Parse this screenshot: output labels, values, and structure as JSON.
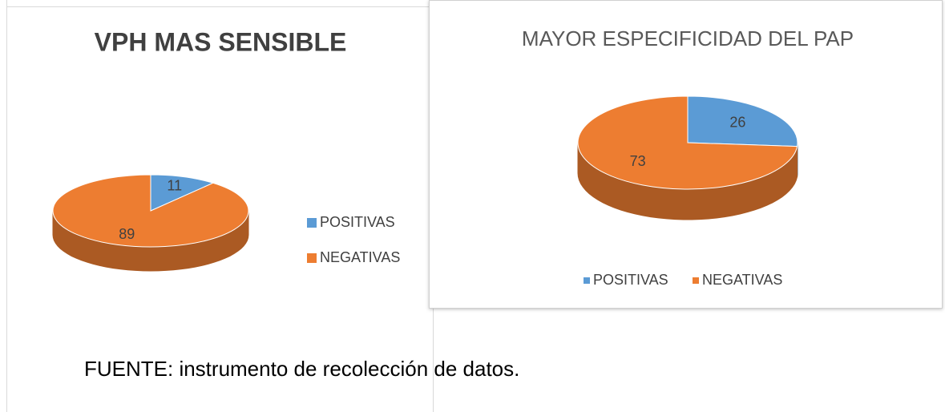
{
  "chart_data": [
    {
      "type": "pie",
      "title": "VPH MAS SENSIBLE",
      "categories": [
        "POSITIVAS",
        "NEGATIVAS"
      ],
      "values": [
        11,
        89
      ],
      "colors": [
        "#5b9bd5",
        "#ed7d31"
      ],
      "legend": "right"
    },
    {
      "type": "pie",
      "title": "MAYOR ESPECIFICIDAD DEL PAP",
      "categories": [
        "POSITIVAS",
        "NEGATIVAS"
      ],
      "values": [
        26,
        73
      ],
      "colors": [
        "#5b9bd5",
        "#ed7d31"
      ],
      "legend": "bottom"
    }
  ],
  "source": "FUENTE: instrumento de recolección de datos."
}
